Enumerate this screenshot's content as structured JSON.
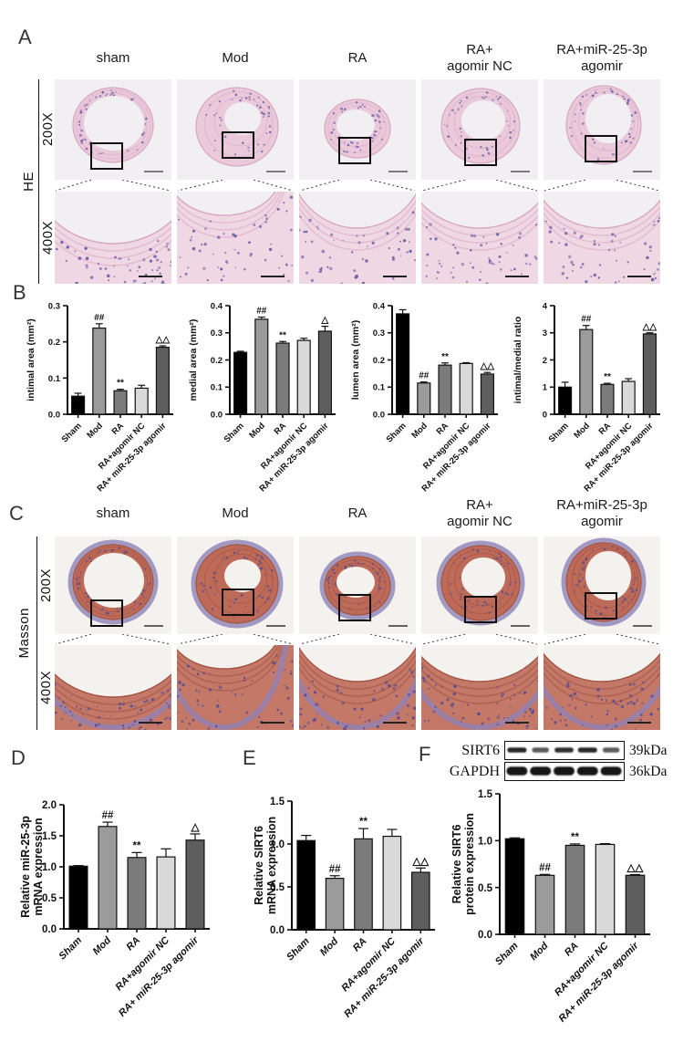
{
  "groups": [
    "Sham",
    "Mod",
    "RA",
    "RA+agomir NC",
    "RA+ miR-25-3p agomir"
  ],
  "bar_palette": [
    "#000000",
    "#9b9b9b",
    "#7b7b7b",
    "#d9d9d9",
    "#5e5e5e"
  ],
  "panels": {
    "A": {
      "label": "A",
      "stain": "HE",
      "magnifications": [
        "200X",
        "400X"
      ],
      "columns": [
        "sham",
        "Mod",
        "RA",
        "RA+\nagomir NC",
        "RA+miR-25-3p\nagomir"
      ]
    },
    "B": {
      "label": "B"
    },
    "C": {
      "label": "C",
      "stain": "Masson",
      "magnifications": [
        "200X",
        "400X"
      ],
      "columns": [
        "sham",
        "Mod",
        "RA",
        "RA+\nagomir NC",
        "RA+miR-25-3p\nagomir"
      ]
    },
    "D": {
      "label": "D"
    },
    "E": {
      "label": "E"
    },
    "F": {
      "label": "F",
      "blot": {
        "lanes": 5,
        "rows": [
          {
            "protein": "SIRT6",
            "size": "39kDa",
            "band_intensities": [
              0.88,
              0.5,
              0.82,
              0.88,
              0.48
            ]
          },
          {
            "protein": "GAPDH",
            "size": "36kDa",
            "band_intensities": [
              1,
              1,
              1,
              1,
              1
            ]
          }
        ]
      }
    }
  },
  "chart_data": [
    {
      "id": "intimal-area",
      "panel": "B",
      "type": "bar",
      "ylabel": [
        "intimal area (mm²)"
      ],
      "categories": [
        "Sham",
        "Mod",
        "RA",
        "RA+agomir NC",
        "RA+ miR-25-3p agomir"
      ],
      "values": [
        0.05,
        0.238,
        0.065,
        0.072,
        0.185
      ],
      "errors": [
        0.008,
        0.012,
        0.004,
        0.008,
        0.004
      ],
      "annotations": [
        "",
        "##",
        "**",
        "",
        "△△"
      ],
      "ylim": [
        0,
        0.3
      ],
      "yticks": [
        {
          "v": 0,
          "label": "0.0"
        },
        {
          "v": 0.1,
          "label": "0.1"
        },
        {
          "v": 0.2,
          "label": "0.2"
        },
        {
          "v": 0.3,
          "label": "0.3"
        }
      ]
    },
    {
      "id": "medial-area",
      "panel": "B",
      "type": "bar",
      "ylabel": [
        "medial area (mm²)"
      ],
      "categories": [
        "Sham",
        "Mod",
        "RA",
        "RA+agomir NC",
        "RA+ miR-25-3p agomir"
      ],
      "values": [
        0.228,
        0.35,
        0.262,
        0.272,
        0.306
      ],
      "errors": [
        0.004,
        0.008,
        0.006,
        0.008,
        0.018
      ],
      "annotations": [
        "",
        "##",
        "**",
        "",
        "△"
      ],
      "ylim": [
        0,
        0.4
      ],
      "yticks": [
        {
          "v": 0,
          "label": "0.0"
        },
        {
          "v": 0.1,
          "label": "0.1"
        },
        {
          "v": 0.2,
          "label": "0.2"
        },
        {
          "v": 0.3,
          "label": "0.3"
        },
        {
          "v": 0.4,
          "label": "0.4"
        }
      ]
    },
    {
      "id": "lumen-area",
      "panel": "B",
      "type": "bar",
      "ylabel": [
        "lumen area (mm²)"
      ],
      "categories": [
        "Sham",
        "Mod",
        "RA",
        "RA+agomir NC",
        "RA+ miR-25-3p agomir"
      ],
      "values": [
        0.37,
        0.115,
        0.181,
        0.187,
        0.148
      ],
      "errors": [
        0.015,
        0.004,
        0.008,
        0.003,
        0.006
      ],
      "annotations": [
        "",
        "##",
        "**",
        "",
        "△△"
      ],
      "ylim": [
        0,
        0.4
      ],
      "yticks": [
        {
          "v": 0,
          "label": "0.0"
        },
        {
          "v": 0.1,
          "label": "0.1"
        },
        {
          "v": 0.2,
          "label": "0.2"
        },
        {
          "v": 0.3,
          "label": "0.3"
        },
        {
          "v": 0.4,
          "label": "0.4"
        }
      ]
    },
    {
      "id": "intimal-medial-ratio",
      "panel": "B",
      "type": "bar",
      "ylabel": [
        "intimal/medial ratio"
      ],
      "categories": [
        "Sham",
        "Mod",
        "RA",
        "RA+agomir NC",
        "RA+ miR-25-3p agomir"
      ],
      "values": [
        1.0,
        3.12,
        1.1,
        1.21,
        2.96
      ],
      "errors": [
        0.18,
        0.15,
        0.04,
        0.1,
        0.04
      ],
      "annotations": [
        "",
        "##",
        "**",
        "",
        "△△"
      ],
      "ylim": [
        0,
        4
      ],
      "yticks": [
        {
          "v": 0,
          "label": "0"
        },
        {
          "v": 1,
          "label": "1"
        },
        {
          "v": 2,
          "label": "2"
        },
        {
          "v": 3,
          "label": "3"
        },
        {
          "v": 4,
          "label": "4"
        }
      ]
    },
    {
      "id": "mir-25-3p-mrna",
      "panel": "D",
      "type": "bar",
      "ylabel": [
        "Relative miR-25-3p",
        "mRNA expression"
      ],
      "categories": [
        "Sham",
        "Mod",
        "RA",
        "RA+agomir NC",
        "RA+ miR-25-3p agomir"
      ],
      "values": [
        1.01,
        1.65,
        1.15,
        1.16,
        1.43
      ],
      "errors": [
        0.01,
        0.07,
        0.08,
        0.13,
        0.1
      ],
      "annotations": [
        "",
        "##",
        "**",
        "",
        "△"
      ],
      "ylim": [
        0,
        2
      ],
      "yticks": [
        {
          "v": 0,
          "label": "0.0"
        },
        {
          "v": 0.5,
          "label": "0.5"
        },
        {
          "v": 1,
          "label": "1.0"
        },
        {
          "v": 1.5,
          "label": "1.5"
        },
        {
          "v": 2,
          "label": "2.0"
        }
      ]
    },
    {
      "id": "sirt6-mrna",
      "panel": "E",
      "type": "bar",
      "ylabel": [
        "Relative SIRT6",
        "mRNA expression"
      ],
      "categories": [
        "Sham",
        "Mod",
        "RA",
        "RA+agomir NC",
        "RA+ miR-25-3p agomir"
      ],
      "values": [
        1.04,
        0.6,
        1.06,
        1.09,
        0.67
      ],
      "errors": [
        0.06,
        0.03,
        0.12,
        0.08,
        0.05
      ],
      "annotations": [
        "",
        "##",
        "**",
        "",
        "△△"
      ],
      "ylim": [
        0,
        1.5
      ],
      "yticks": [
        {
          "v": 0,
          "label": "0.0"
        },
        {
          "v": 0.5,
          "label": "0.5"
        },
        {
          "v": 1,
          "label": "1.0"
        },
        {
          "v": 1.5,
          "label": "1.5"
        }
      ]
    },
    {
      "id": "sirt6-protein",
      "panel": "F",
      "type": "bar",
      "ylabel": [
        "Relative SIRT6",
        "protein expression"
      ],
      "categories": [
        "Sham",
        "Mod",
        "RA",
        "RA+agomir NC",
        "RA+ miR-25-3p agomir"
      ],
      "values": [
        1.02,
        0.63,
        0.95,
        0.96,
        0.63
      ],
      "errors": [
        0.01,
        0.01,
        0.015,
        0.008,
        0.008
      ],
      "annotations": [
        "",
        "##",
        "**",
        "",
        "△△"
      ],
      "ylim": [
        0,
        1.5
      ],
      "yticks": [
        {
          "v": 0,
          "label": "0.0"
        },
        {
          "v": 0.5,
          "label": "0.5"
        },
        {
          "v": 1,
          "label": "1.0"
        },
        {
          "v": 1.5,
          "label": "1.5"
        }
      ]
    }
  ]
}
